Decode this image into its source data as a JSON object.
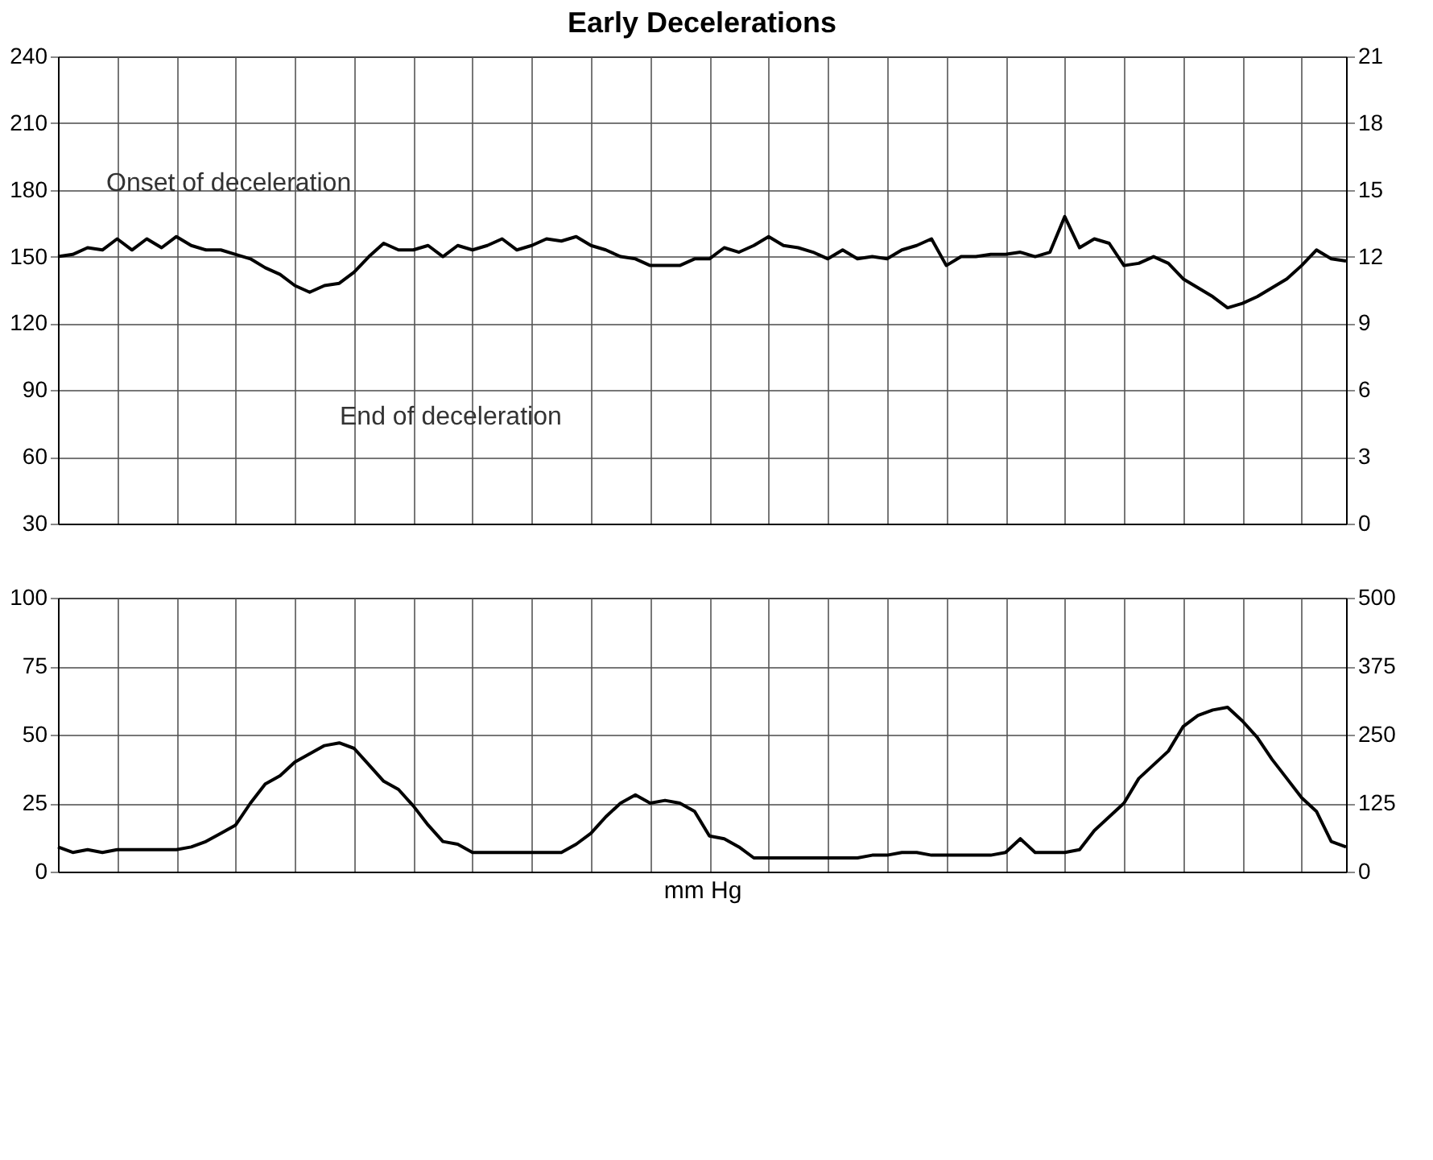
{
  "chart_data": [
    {
      "type": "line",
      "title": "Early Decelerations",
      "categories": [
        null,
        null,
        null,
        null,
        null,
        null,
        null,
        null,
        null,
        null,
        null,
        null,
        null,
        null,
        null,
        null,
        null,
        null,
        null,
        null,
        null,
        null,
        null,
        null,
        null,
        null,
        null,
        null,
        null,
        null,
        null,
        null,
        null,
        null,
        null,
        null,
        null,
        null,
        null,
        null,
        null,
        null,
        null,
        null,
        null,
        null,
        null,
        null,
        null,
        null,
        null,
        null,
        null,
        null,
        null,
        null,
        null,
        null,
        null,
        null,
        null,
        null,
        null,
        null,
        null,
        null,
        null,
        null,
        null,
        null,
        null,
        null,
        null,
        null,
        null,
        null,
        null,
        null,
        null,
        null,
        null,
        null,
        null,
        null,
        null,
        null,
        null,
        null
      ],
      "series": [
        {
          "color": "#000000",
          "values": [
            150,
            151,
            154,
            153,
            158,
            153,
            158,
            154,
            159,
            155,
            153,
            153,
            151,
            149,
            145,
            142,
            137,
            134,
            137,
            138,
            143,
            150,
            156,
            153,
            153,
            155,
            150,
            155,
            153,
            155,
            158,
            153,
            155,
            158,
            157,
            159,
            155,
            153,
            150,
            149,
            146,
            146,
            146,
            149,
            149,
            154,
            152,
            155,
            159,
            155,
            154,
            152,
            149,
            153,
            149,
            150,
            149,
            153,
            155,
            158,
            146,
            150,
            150,
            151,
            151,
            152,
            150,
            152,
            168,
            154,
            158,
            156,
            146,
            147,
            150,
            147,
            140,
            136,
            132,
            127,
            129,
            132,
            136,
            140,
            146,
            153,
            149,
            148
          ]
        }
      ],
      "ylim": [
        30,
        240
      ],
      "yticks": [
        30,
        60,
        90,
        120,
        150,
        180,
        210,
        240
      ],
      "y2lim": [
        0,
        21
      ],
      "y2ticks": [
        0,
        3,
        6,
        9,
        12,
        15,
        18,
        21
      ],
      "grid": true,
      "tick_labels": "y",
      "annotations": [
        "Onset of deceleration",
        "End of deceleration"
      ]
    },
    {
      "type": "line",
      "xlabel": "mm Hg",
      "categories": [
        null,
        null,
        null,
        null,
        null,
        null,
        null,
        null,
        null,
        null,
        null,
        null,
        null,
        null,
        null,
        null,
        null,
        null,
        null,
        null,
        null,
        null,
        null,
        null,
        null,
        null,
        null,
        null,
        null,
        null,
        null,
        null,
        null,
        null,
        null,
        null,
        null,
        null,
        null,
        null,
        null,
        null,
        null,
        null,
        null,
        null,
        null,
        null,
        null,
        null,
        null,
        null,
        null,
        null,
        null,
        null,
        null,
        null,
        null,
        null,
        null,
        null,
        null,
        null,
        null,
        null,
        null,
        null,
        null,
        null,
        null,
        null,
        null,
        null,
        null,
        null,
        null,
        null,
        null,
        null,
        null,
        null,
        null,
        null,
        null,
        null,
        null,
        null
      ],
      "series": [
        {
          "color": "#000000",
          "values": [
            9,
            7,
            8,
            7,
            8,
            8,
            8,
            8,
            8,
            9,
            11,
            14,
            17,
            25,
            32,
            35,
            40,
            43,
            46,
            47,
            45,
            39,
            33,
            30,
            24,
            17,
            11,
            10,
            7,
            7,
            7,
            7,
            7,
            7,
            7,
            10,
            14,
            20,
            25,
            28,
            25,
            26,
            25,
            22,
            13,
            12,
            9,
            5,
            5,
            5,
            5,
            5,
            5,
            5,
            5,
            6,
            6,
            7,
            7,
            6,
            6,
            6,
            6,
            6,
            7,
            12,
            7,
            7,
            7,
            8,
            15,
            20,
            25,
            34,
            39,
            44,
            53,
            57,
            59,
            60,
            55,
            49,
            41,
            34,
            27,
            22,
            11,
            9
          ]
        }
      ],
      "ylim": [
        0,
        100
      ],
      "yticks": [
        0,
        25,
        50,
        75,
        100
      ],
      "y2lim": [
        0,
        500
      ],
      "y2ticks": [
        0,
        125,
        250,
        375,
        500
      ],
      "grid": true,
      "tick_labels": "y"
    }
  ]
}
